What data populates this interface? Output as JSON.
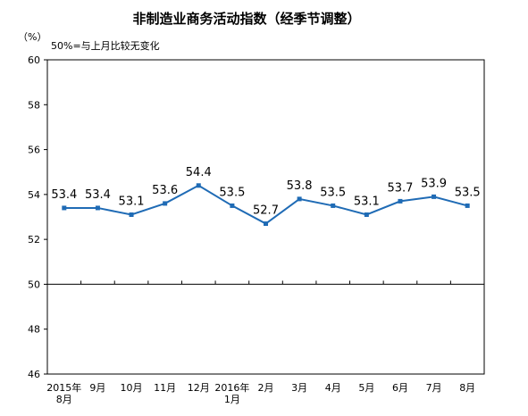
{
  "chart_data": {
    "type": "line",
    "title": "非制造业商务活动指数（经季节调整）",
    "unit_label": "（%）",
    "annotation": "50%=与上月比较无变化",
    "ylim": [
      46,
      60
    ],
    "y_ticks": [
      "46",
      "48",
      "50",
      "52",
      "54",
      "56",
      "58",
      "60"
    ],
    "reference_line": 50,
    "grid": false,
    "categories": [
      [
        "2015年",
        "8月"
      ],
      [
        "9月"
      ],
      [
        "10月"
      ],
      [
        "11月"
      ],
      [
        "12月"
      ],
      [
        "2016年",
        "1月"
      ],
      [
        "2月"
      ],
      [
        "3月"
      ],
      [
        "4月"
      ],
      [
        "5月"
      ],
      [
        "6月"
      ],
      [
        "7月"
      ],
      [
        "8月"
      ]
    ],
    "series": [
      {
        "values": [
          53.4,
          53.4,
          53.1,
          53.6,
          54.4,
          53.5,
          52.7,
          53.8,
          53.5,
          53.1,
          53.7,
          53.9,
          53.5
        ],
        "labels": [
          "53.4",
          "53.4",
          "53.1",
          "53.6",
          "54.4",
          "53.5",
          "52.7",
          "53.8",
          "53.5",
          "53.1",
          "53.7",
          "53.9",
          "53.5"
        ],
        "color": "#1f6bb5"
      }
    ]
  }
}
